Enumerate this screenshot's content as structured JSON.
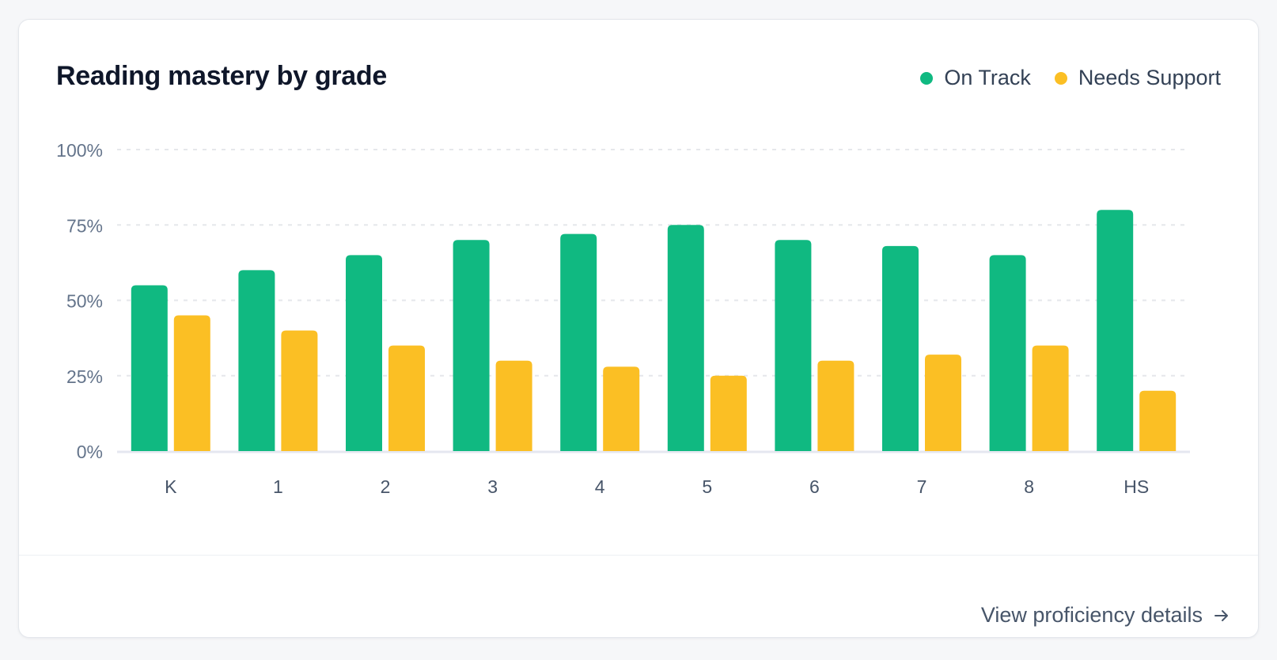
{
  "card": {
    "title": "Reading mastery by grade",
    "link_label": "View proficiency details"
  },
  "legend": [
    {
      "label": "On Track",
      "color": "#10b981"
    },
    {
      "label": "Needs Support",
      "color": "#fbbf24"
    }
  ],
  "chart_data": {
    "type": "bar",
    "title": "Reading mastery by grade",
    "categories": [
      "K",
      "1",
      "2",
      "3",
      "4",
      "5",
      "6",
      "7",
      "8",
      "HS"
    ],
    "series": [
      {
        "name": "On Track",
        "color": "#10b981",
        "values": [
          55,
          60,
          65,
          70,
          72,
          75,
          70,
          68,
          65,
          80
        ]
      },
      {
        "name": "Needs Support",
        "color": "#fbbf24",
        "values": [
          45,
          40,
          35,
          30,
          28,
          25,
          30,
          32,
          35,
          20
        ]
      }
    ],
    "ylim": [
      0,
      100
    ],
    "yticks": [
      0,
      25,
      50,
      75,
      100
    ],
    "ytick_labels": [
      "0%",
      "25%",
      "50%",
      "75%",
      "100%"
    ],
    "grid": true,
    "legend_position": "top-right"
  }
}
